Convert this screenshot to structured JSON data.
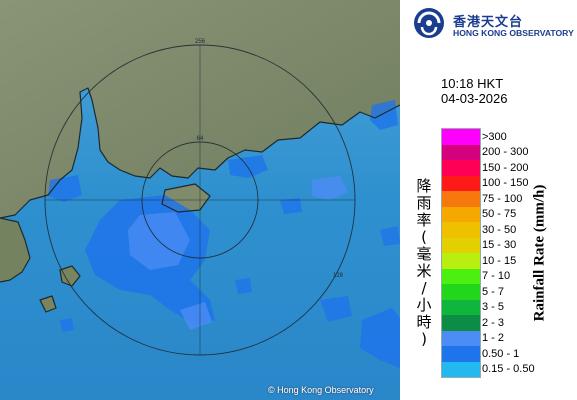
{
  "time": "10:18 HKT",
  "date": "04-03-2026",
  "logo": {
    "name_zh": "香港天文台",
    "name_en": "HONG KONG OBSERVATORY",
    "icon": "hko-logo-icon",
    "color": "#1a3d8f"
  },
  "copyright": "© Hong Kong Observatory",
  "legend": {
    "unit_zh": "降雨率(毫米/小時)",
    "unit_en": "Rainfall Rate (mm/h)",
    "classes": [
      {
        "label": ">300",
        "color": "#ff00ff"
      },
      {
        "label": "200 - 300",
        "color": "#d4007e"
      },
      {
        "label": "150 - 200",
        "color": "#ff0057"
      },
      {
        "label": "100 - 150",
        "color": "#ff1a1a"
      },
      {
        "label": "75 - 100",
        "color": "#f7780c"
      },
      {
        "label": "50 - 75",
        "color": "#f5a800"
      },
      {
        "label": "30 - 50",
        "color": "#eec000"
      },
      {
        "label": "15 - 30",
        "color": "#e3d000"
      },
      {
        "label": "10 - 15",
        "color": "#b8ee10"
      },
      {
        "label": "7 - 10",
        "color": "#4cf010"
      },
      {
        "label": "5 - 7",
        "color": "#22d71b"
      },
      {
        "label": "3 - 5",
        "color": "#10b53b"
      },
      {
        "label": "2 - 3",
        "color": "#0d8c45"
      },
      {
        "label": "1 - 2",
        "color": "#4c8cf5"
      },
      {
        "label": "0.50 - 1",
        "color": "#1e74ea"
      },
      {
        "label": "0.15 - 0.50",
        "color": "#23b8f0"
      }
    ]
  },
  "map": {
    "sea_color": "#2d8cd2",
    "land_color": "#7e8a69",
    "range_rings": [
      "64",
      "128",
      "256"
    ]
  }
}
